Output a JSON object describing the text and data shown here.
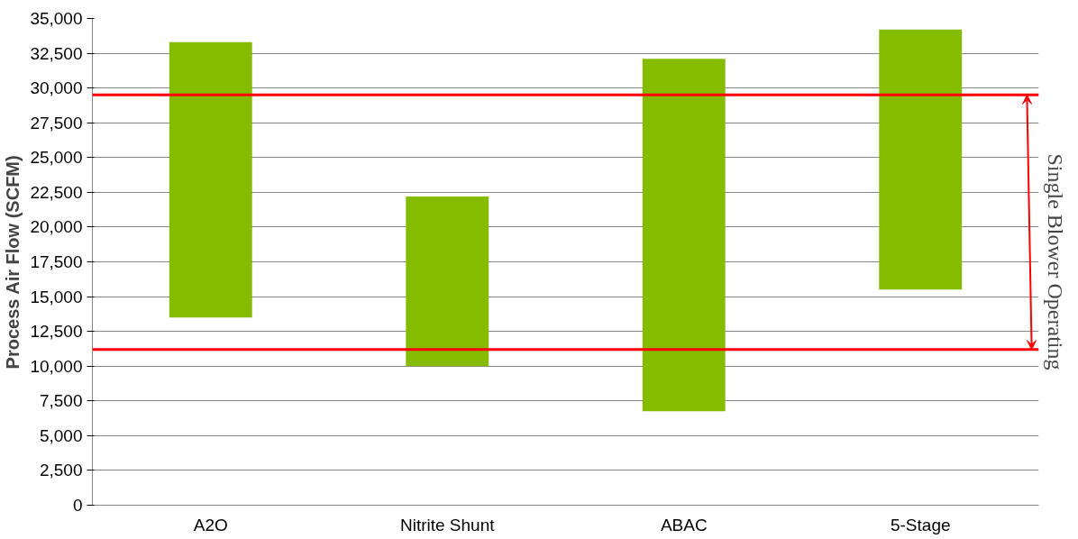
{
  "chart_data": {
    "type": "bar",
    "ylabel": "Process Air Flow (SCFM)",
    "categories": [
      "A2O",
      "Nitrite Shunt",
      "ABAC",
      "5-Stage"
    ],
    "base": [
      13500,
      10000,
      6750,
      15500
    ],
    "values": [
      19800,
      12200,
      25350,
      18700
    ],
    "color": "#86bc00",
    "ylim": [
      0,
      35000
    ],
    "yticks": [
      0,
      {
        "value": 2500,
        "label": "2,500"
      },
      {
        "value": 5000,
        "label": "5,000"
      },
      {
        "value": 7500,
        "label": "7,500"
      },
      {
        "value": 10000,
        "label": "10,000"
      },
      {
        "value": 12500,
        "label": "12,500"
      },
      {
        "value": 15000,
        "label": "15,000"
      },
      {
        "value": 17500,
        "label": "17,500"
      },
      {
        "value": 20000,
        "label": "20,000"
      },
      {
        "value": 22500,
        "label": "22,500"
      },
      {
        "value": 25000,
        "label": "25,000"
      },
      {
        "value": 27500,
        "label": "27,500"
      },
      {
        "value": 30000,
        "label": "30,000"
      },
      {
        "value": 32500,
        "label": "32,500"
      },
      {
        "value": 35000,
        "label": "35,000"
      }
    ],
    "grid": "y",
    "ref_lines": [
      {
        "axis": "y",
        "value": 29500,
        "label": null,
        "color": "#ff0000"
      },
      {
        "axis": "y",
        "value": 11200,
        "label": null,
        "color": "#ff0000"
      }
    ],
    "annotations": [
      "Single Blower Operating"
    ]
  }
}
